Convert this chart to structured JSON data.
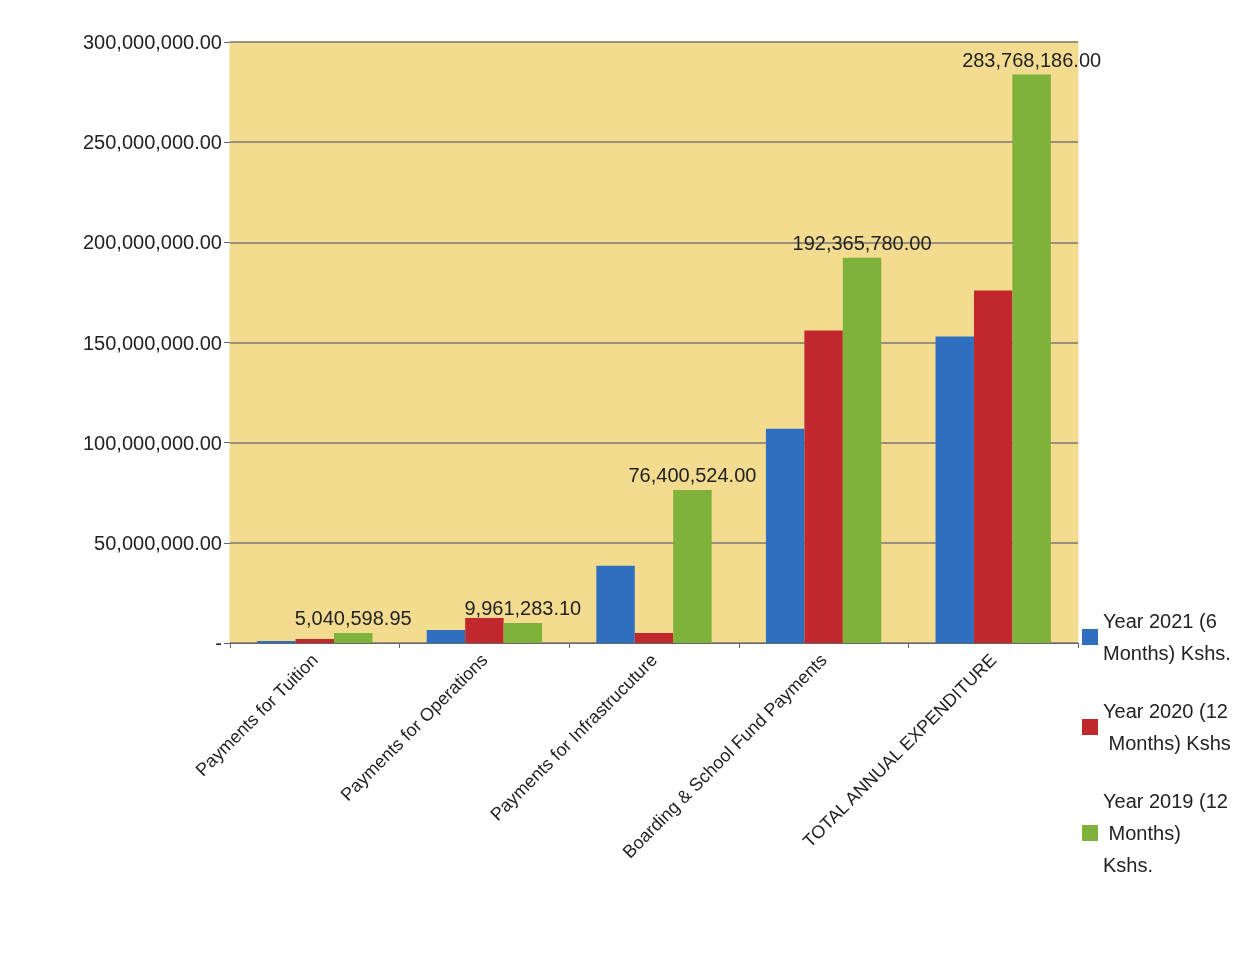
{
  "chart_data": {
    "type": "bar",
    "categories": [
      "Payments for Tuition",
      "Payments for Operations",
      "Payments for Infrastrucuture",
      "Boarding & School Fund Payments",
      "TOTAL ANNUAL EXPENDITURE"
    ],
    "series": [
      {
        "name": "Year 2021 (6 Months) Kshs.",
        "color": "#2f6fc0",
        "values": [
          1000000,
          6500000,
          38500000,
          107000000,
          153000000
        ]
      },
      {
        "name": "Year 2020 (12 Months) Kshs",
        "color": "#c0282d",
        "values": [
          2000000,
          12500000,
          5000000,
          156000000,
          176000000
        ]
      },
      {
        "name": "Year 2019 (12 Months) Kshs.",
        "color": "#7fb23a",
        "values": [
          5040598.95,
          9961283.1,
          76400524.0,
          192365780.0,
          283768186.0
        ],
        "value_labels": [
          "5,040,598.95",
          "9,961,283.10",
          "76,400,524.00",
          "192,365,780.00",
          "283,768,186.00"
        ]
      }
    ],
    "ylim": [
      0,
      300000000
    ],
    "yticks": [
      {
        "value": 0,
        "label": "-"
      },
      {
        "value": 50000000,
        "label": "50,000,000.00"
      },
      {
        "value": 100000000,
        "label": "100,000,000.00"
      },
      {
        "value": 150000000,
        "label": "150,000,000.00"
      },
      {
        "value": 200000000,
        "label": "200,000,000.00"
      },
      {
        "value": 250000000,
        "label": "250,000,000.00"
      },
      {
        "value": 300000000,
        "label": "300,000,000.00"
      }
    ],
    "grid": "y",
    "legend": "right"
  }
}
